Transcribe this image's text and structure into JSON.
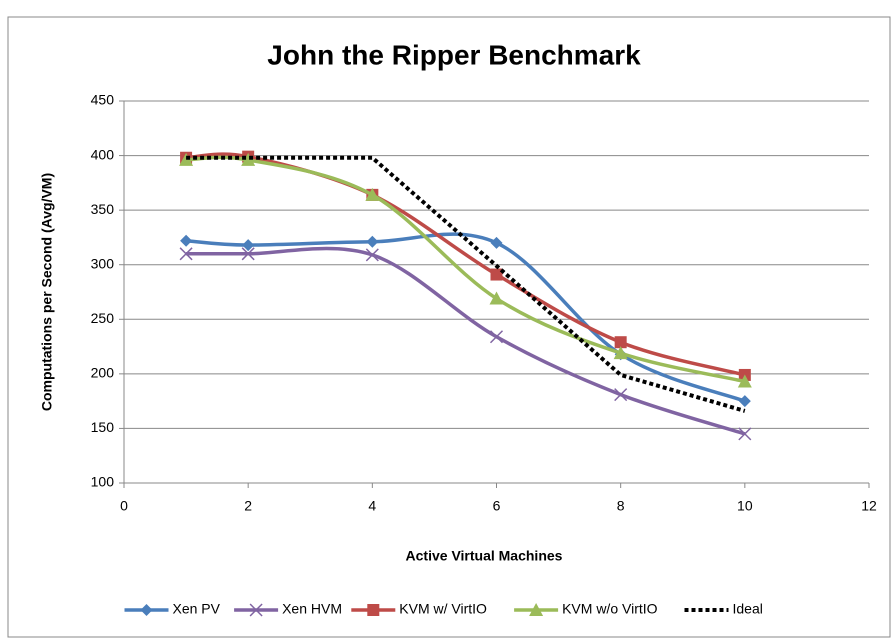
{
  "chart_data": {
    "type": "line",
    "title": "John the Ripper Benchmark",
    "x_label": "Active Virtual Machines",
    "y_label": "Computations per Second  (Avg/VM)",
    "x": [
      1,
      2,
      4,
      6,
      8,
      10
    ],
    "xlim": [
      0,
      12
    ],
    "xticks": [
      0,
      2,
      4,
      6,
      8,
      10,
      12
    ],
    "ylim": [
      100,
      450
    ],
    "yticks": [
      100,
      150,
      200,
      250,
      300,
      350,
      400,
      450
    ],
    "grid": true,
    "legend": "bottom",
    "series": [
      {
        "name": "Xen PV",
        "color": "#4a7ebb",
        "marker": "diamond",
        "smooth": true,
        "values": [
          322,
          318,
          321,
          320,
          218,
          175
        ]
      },
      {
        "name": "Xen HVM",
        "color": "#8064a2",
        "marker": "x",
        "smooth": true,
        "values": [
          310,
          310,
          309,
          234,
          181,
          145
        ]
      },
      {
        "name": "KVM w/ VirtIO",
        "color": "#be4b48",
        "marker": "square",
        "smooth": true,
        "values": [
          398,
          399,
          364,
          291,
          229,
          199
        ]
      },
      {
        "name": "KVM w/o VirtIO",
        "color": "#9bbb59",
        "marker": "triangle",
        "smooth": true,
        "values": [
          396,
          396,
          364,
          269,
          219,
          193
        ]
      },
      {
        "name": "Ideal",
        "color": "#000000",
        "dash": true,
        "smooth": false,
        "values": [
          398,
          398,
          398,
          299,
          199,
          166
        ]
      }
    ]
  }
}
